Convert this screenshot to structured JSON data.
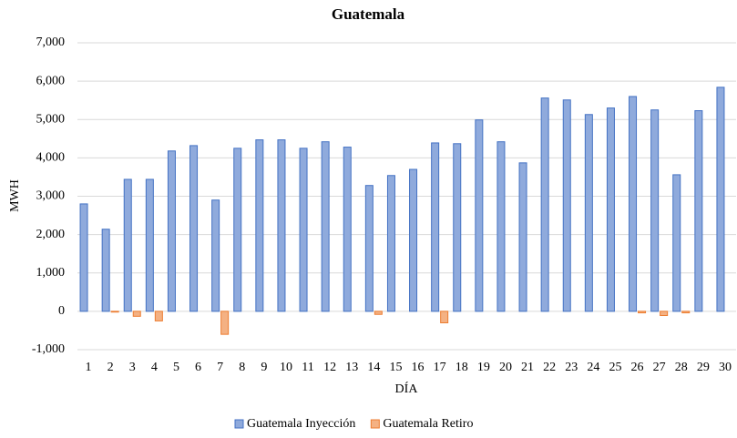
{
  "chart_data": {
    "type": "bar",
    "title": "Guatemala",
    "x_label": "DÍA",
    "y_label": "MWH",
    "categories": [
      "1",
      "2",
      "3",
      "4",
      "5",
      "6",
      "7",
      "8",
      "9",
      "10",
      "11",
      "12",
      "13",
      "14",
      "15",
      "16",
      "17",
      "18",
      "19",
      "20",
      "21",
      "22",
      "23",
      "24",
      "25",
      "26",
      "27",
      "28",
      "29",
      "30"
    ],
    "series": [
      {
        "name": "Guatemala Inyección",
        "color": "#8faadc",
        "values": [
          2800,
          2140,
          3440,
          3440,
          4180,
          4320,
          2900,
          4250,
          4470,
          4470,
          4250,
          4420,
          4280,
          3280,
          3540,
          3700,
          4390,
          4370,
          4990,
          4420,
          3870,
          5560,
          5510,
          5130,
          5300,
          5600,
          5250,
          3560,
          5230,
          5840
        ]
      },
      {
        "name": "Guatemala Retiro",
        "color": "#f4b183",
        "values": [
          0,
          -20,
          -130,
          -250,
          0,
          0,
          -600,
          0,
          0,
          0,
          0,
          0,
          0,
          -80,
          0,
          0,
          -300,
          0,
          0,
          0,
          0,
          0,
          0,
          0,
          0,
          -40,
          -110,
          -40,
          0,
          0
        ]
      }
    ],
    "ylim": [
      -1000,
      7000
    ],
    "yticks": [
      {
        "value": -1000,
        "label": "-1,000"
      },
      0,
      {
        "value": 1000,
        "label": "1,000"
      },
      {
        "value": 2000,
        "label": "2,000"
      },
      {
        "value": 3000,
        "label": "3,000"
      },
      {
        "value": 4000,
        "label": "4,000"
      },
      {
        "value": 5000,
        "label": "5,000"
      },
      {
        "value": 6000,
        "label": "6,000"
      },
      {
        "value": 7000,
        "label": "7,000"
      }
    ],
    "grid": true,
    "legend": "bottom"
  }
}
